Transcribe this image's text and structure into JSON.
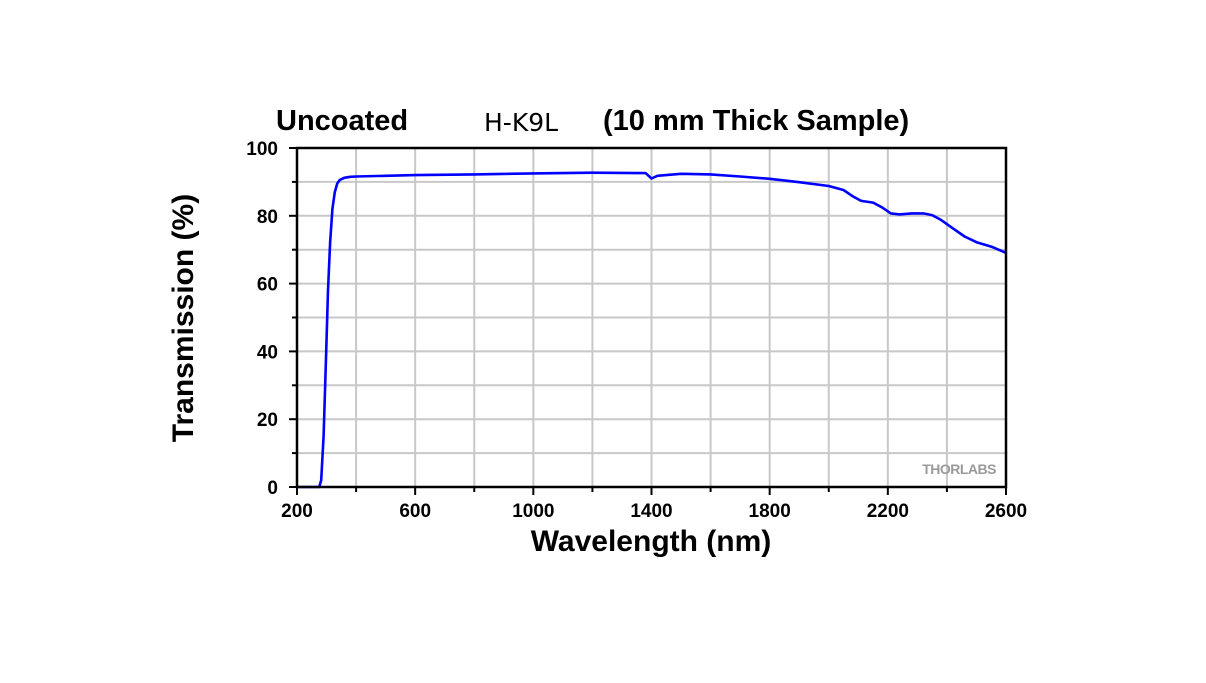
{
  "chart_data": {
    "type": "line",
    "title_parts": [
      "Uncoated",
      "H-K9L",
      "(10 mm Thick Sample)"
    ],
    "xlabel": "Wavelength (nm)",
    "ylabel": "Transmission (%)",
    "xlim": [
      200,
      2600
    ],
    "ylim": [
      0,
      100
    ],
    "xticks": [
      "200",
      "600",
      "1000",
      "1400",
      "1800",
      "2200",
      "2600"
    ],
    "yticks": [
      "0",
      "20",
      "40",
      "60",
      "80",
      "100"
    ],
    "grid": true,
    "watermark": "THORLABS",
    "series": [
      {
        "color": "#0000ff",
        "x": [
          200,
          260,
          275,
          282,
          290,
          298,
          305,
          312,
          320,
          328,
          336,
          345,
          360,
          380,
          400,
          500,
          600,
          800,
          1000,
          1200,
          1380,
          1400,
          1420,
          1500,
          1600,
          1700,
          1800,
          1900,
          2000,
          2050,
          2080,
          2110,
          2150,
          2180,
          2210,
          2240,
          2280,
          2320,
          2350,
          2380,
          2420,
          2460,
          2500,
          2550,
          2600
        ],
        "y": [
          0,
          0,
          0,
          2,
          15,
          38,
          58,
          72,
          82,
          87,
          89.5,
          90.6,
          91.2,
          91.5,
          91.6,
          91.8,
          92,
          92.2,
          92.5,
          92.7,
          92.6,
          91.0,
          91.8,
          92.4,
          92.2,
          91.6,
          90.9,
          89.9,
          88.8,
          87.6,
          85.8,
          84.4,
          83.9,
          82.5,
          80.7,
          80.4,
          80.7,
          80.7,
          80.2,
          78.8,
          76.3,
          73.9,
          72.2,
          70.9,
          69.1
        ]
      }
    ]
  }
}
